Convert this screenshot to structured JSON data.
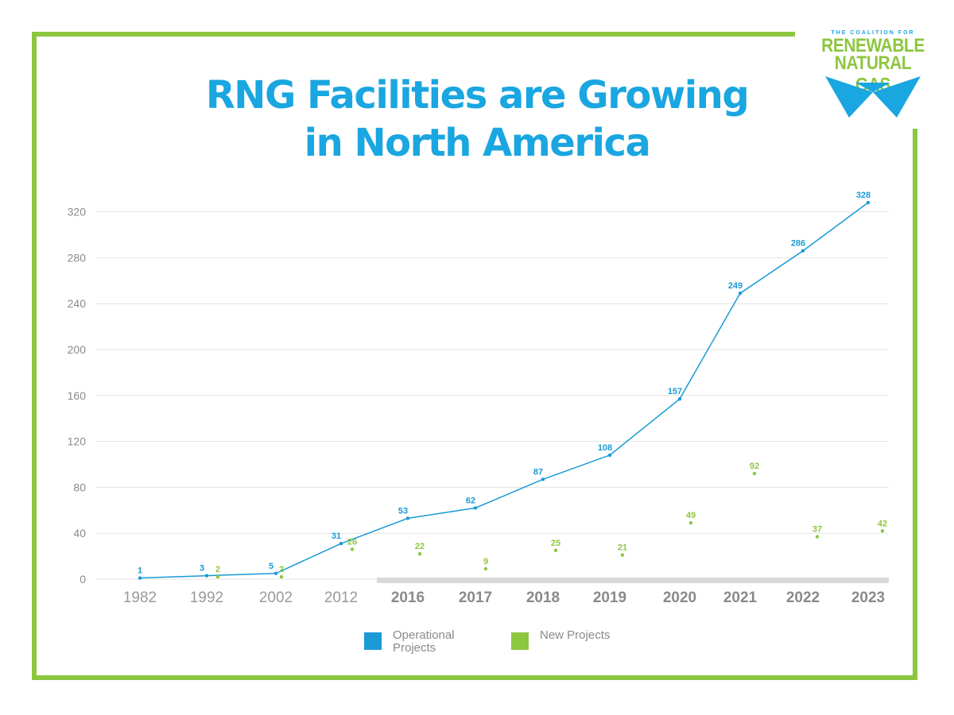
{
  "title_line1": "RNG Facilities are Growing",
  "title_line2": "in North America",
  "logo": {
    "small": "THE COALITION FOR",
    "line1": "RENEWABLE",
    "line2": "NATURAL GAS"
  },
  "colors": {
    "operational": "#1a9ad6",
    "new": "#8dc63f",
    "frame": "#8dc63f"
  },
  "legend": {
    "operational": "Operational Projects",
    "new": "New Projects"
  },
  "chart_data": {
    "type": "line",
    "title": "RNG Facilities are Growing in North America",
    "xlabel": "",
    "ylabel": "",
    "categories": [
      "1982",
      "1992",
      "2002",
      "2012",
      "2016",
      "2017",
      "2018",
      "2019",
      "2020",
      "2021",
      "2022",
      "2023"
    ],
    "bold_categories": [
      "2016",
      "2017",
      "2018",
      "2019",
      "2020",
      "2021",
      "2022",
      "2023"
    ],
    "ylim": [
      0,
      320
    ],
    "yticks": [
      0,
      40,
      80,
      120,
      160,
      200,
      240,
      280,
      320
    ],
    "grid": true,
    "legend_position": "bottom",
    "series": [
      {
        "name": "Operational Projects",
        "style": "line",
        "values": [
          1,
          3,
          5,
          31,
          53,
          62,
          87,
          108,
          157,
          249,
          286,
          328
        ]
      },
      {
        "name": "New Projects",
        "style": "points",
        "values": [
          null,
          2,
          2,
          26,
          22,
          9,
          25,
          21,
          49,
          92,
          37,
          42
        ]
      }
    ]
  }
}
